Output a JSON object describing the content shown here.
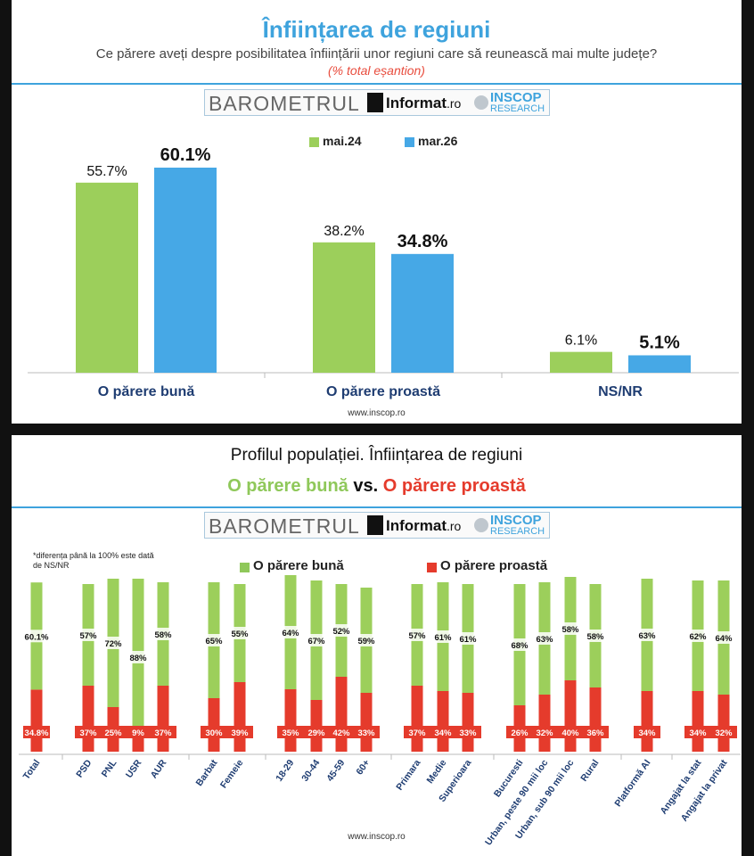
{
  "panel1": {
    "title": "Înființarea de regiuni",
    "subtitle": "Ce părere aveți despre posibilitatea înființării unor regiuni care să reunească mai multe județe?",
    "note": "(% total eșantion)",
    "logo": {
      "barometru": "BAROMETRUL",
      "informat": "Informat",
      "informat_tld": ".ro",
      "inscop": "INSCOP",
      "research": "RESEARCH"
    },
    "legend": [
      "mai.24",
      "mar.26"
    ],
    "source": "www.inscop.ro"
  },
  "panel2": {
    "title": "Profilul populației. Înființarea de regiuni",
    "subtitle_good": "O părere bună",
    "subtitle_vs": " vs. ",
    "subtitle_bad": "O părere proastă",
    "footnote": "*diferența până la 100% este dată de NS/NR",
    "legend": [
      "O părere bună",
      "O părere proastă"
    ],
    "source": "www.inscop.ro"
  },
  "colors": {
    "green": "#9ccf5b",
    "blue": "#46a8e6",
    "red": "#e53b2c",
    "title_blue": "#3ea3dd",
    "axis_label": "#1f3d72"
  },
  "chart_data": [
    {
      "type": "bar",
      "title": "Înființarea de regiuni",
      "categories": [
        "O părere bună",
        "O părere proastă",
        "NS/NR"
      ],
      "series": [
        {
          "name": "mai.24",
          "values": [
            55.7,
            38.2,
            6.1
          ],
          "labels": [
            "55.7%",
            "38.2%",
            "6.1%"
          ]
        },
        {
          "name": "mar.26",
          "values": [
            60.1,
            34.8,
            5.1
          ],
          "labels": [
            "60.1%",
            "34.8%",
            "5.1%"
          ]
        }
      ],
      "ylim": [
        0,
        65
      ],
      "legend_position": "top-center"
    },
    {
      "type": "bar",
      "title": "Profilul populației. Înființarea de regiuni",
      "categories": [
        "Total",
        "PSD",
        "PNL",
        "USR",
        "AUR",
        "Barbat",
        "Femeie",
        "18-29",
        "30-44",
        "45-59",
        "60+",
        "Primara",
        "Medie",
        "Superioara",
        "Bucuresti",
        "Urban, peste 90 mii loc",
        "Urban, sub 90 mii loc",
        "Rural",
        "Platformă AI",
        "Angajat la stat",
        "Angajat la privat"
      ],
      "groups": [
        [
          0
        ],
        [
          1,
          2,
          3,
          4
        ],
        [
          5,
          6
        ],
        [
          7,
          8,
          9,
          10
        ],
        [
          11,
          12,
          13
        ],
        [
          14,
          15,
          16,
          17
        ],
        [
          18
        ],
        [
          19,
          20
        ]
      ],
      "series": [
        {
          "name": "O părere bună",
          "values": [
            60.1,
            57,
            72,
            88,
            58,
            65,
            55,
            64,
            67,
            52,
            59,
            57,
            61,
            61,
            68,
            63,
            58,
            58,
            63,
            62,
            64
          ],
          "labels": [
            "60.1%",
            "57%",
            "72%",
            "88%",
            "58%",
            "65%",
            "55%",
            "64%",
            "67%",
            "52%",
            "59%",
            "57%",
            "61%",
            "61%",
            "68%",
            "63%",
            "58%",
            "58%",
            "63%",
            "62%",
            "64%"
          ]
        },
        {
          "name": "O părere proastă",
          "values": [
            34.8,
            37,
            25,
            9,
            37,
            30,
            39,
            35,
            29,
            42,
            33,
            37,
            34,
            33,
            26,
            32,
            40,
            36,
            34,
            34,
            32
          ],
          "labels": [
            "34.8%",
            "37%",
            "25%",
            "9%",
            "37%",
            "30%",
            "39%",
            "35%",
            "29%",
            "42%",
            "33%",
            "37%",
            "34%",
            "33%",
            "26%",
            "32%",
            "40%",
            "36%",
            "34%",
            "34%",
            "32%"
          ]
        }
      ],
      "stacked": true,
      "legend_position": "top-center"
    }
  ]
}
